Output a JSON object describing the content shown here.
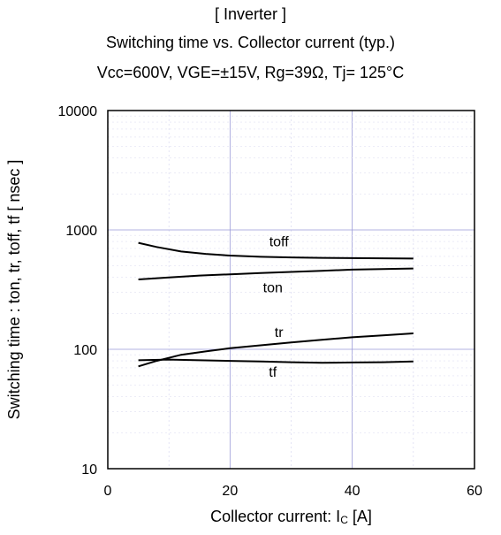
{
  "header": {
    "line1": "[ Inverter ]",
    "line2": "Switching time  vs.  Collector current  (typ.)",
    "line3": "Vcc=600V,   VGE=±15V,   Rg=39Ω,   Tj= 125°C"
  },
  "chart_data": {
    "type": "line",
    "xlabel_main": "Collector current: I",
    "xlabel_sub": "C",
    "xlabel_unit": " [A]",
    "ylabel": "Switching time  :  ton, tr, toff, tf  [ nsec ]",
    "xlim": [
      0,
      60
    ],
    "ylim": [
      10,
      10000
    ],
    "yscale": "log",
    "grid": true,
    "x_ticks": [
      "0",
      "20",
      "40",
      "60"
    ],
    "y_ticks": [
      "10",
      "100",
      "1000",
      "10000"
    ],
    "series": [
      {
        "name": "toff",
        "x": [
          5,
          8,
          12,
          16,
          20,
          25,
          30,
          35,
          40,
          45,
          50
        ],
        "y": [
          780,
          720,
          660,
          630,
          610,
          595,
          588,
          583,
          580,
          578,
          575
        ]
      },
      {
        "name": "ton",
        "x": [
          5,
          10,
          15,
          20,
          25,
          30,
          35,
          40,
          45,
          50
        ],
        "y": [
          385,
          400,
          415,
          425,
          435,
          445,
          455,
          465,
          470,
          475
        ]
      },
      {
        "name": "tr",
        "x": [
          5,
          8,
          12,
          16,
          20,
          25,
          30,
          35,
          40,
          45,
          50
        ],
        "y": [
          72,
          80,
          90,
          96,
          102,
          108,
          114,
          120,
          126,
          131,
          136
        ]
      },
      {
        "name": "tf",
        "x": [
          5,
          10,
          15,
          20,
          25,
          30,
          35,
          40,
          45,
          50
        ],
        "y": [
          81,
          82,
          81,
          80,
          79,
          78,
          77,
          77.5,
          78,
          79
        ]
      }
    ],
    "annotations": [
      {
        "text": "toff",
        "x": 28,
        "y": 730
      },
      {
        "text": "ton",
        "x": 27,
        "y": 300
      },
      {
        "text": "tr",
        "x": 28,
        "y": 127
      },
      {
        "text": "tf",
        "x": 27,
        "y": 59
      }
    ]
  }
}
